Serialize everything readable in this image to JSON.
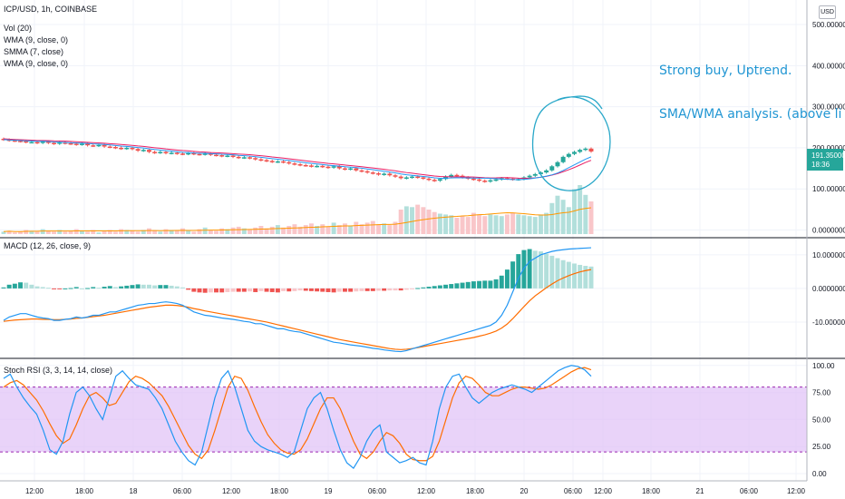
{
  "header": {
    "symbol": "ICP/USD, 1h, COINBASE",
    "indicators": [
      "Vol (20)",
      "WMA (9, close, 0)",
      "SMMA (7, close)",
      "WMA (9, close, 0)"
    ]
  },
  "currency_button": "USD",
  "annotations": {
    "line1": "Strong buy, Uptrend.",
    "line2": "SMA/WMA analysis. (above li"
  },
  "price_tag": {
    "value": "191.35000000",
    "countdown": "18:36"
  },
  "colors": {
    "up": "#26a69a",
    "down": "#ef5350",
    "up_light": "#b2dfdb",
    "down_light": "#f9c6c9",
    "wma_blue": "#2196f3",
    "smma_red": "#e91e63",
    "vol_ma": "#ff9800",
    "macd": "#2196f3",
    "signal": "#ff6d00",
    "rsi_k": "#2196f3",
    "rsi_d": "#ff6d00",
    "band_fill": "#e1c4f7",
    "annotation": "#2196d3",
    "price_tag": "#26a69a"
  },
  "panes": {
    "macd_label": "MACD (12, 26, close, 9)",
    "rsi_label": "Stoch RSI (3, 3, 14, 14, close)"
  },
  "chart_data": [
    {
      "type": "candlestick",
      "title": "ICP/USD, 1h, COINBASE",
      "y_ticks": [
        "500.00000000",
        "400.00000000",
        "300.00000000",
        "200.00000000",
        "100.00000000",
        "0.00000000"
      ],
      "ylim": [
        -10,
        520
      ],
      "x_ticks": [
        "12:00",
        "18:00",
        "18",
        "06:00",
        "12:00",
        "18:00",
        "19",
        "06:00",
        "12:00",
        "18:00",
        "20",
        "06:00",
        "12:00",
        "18:00",
        "21",
        "06:00",
        "12:00"
      ],
      "close": [
        220,
        218,
        217,
        216,
        214,
        214,
        212,
        215,
        212,
        210,
        213,
        211,
        210,
        208,
        210,
        206,
        205,
        207,
        203,
        202,
        200,
        198,
        200,
        197,
        193,
        195,
        190,
        188,
        190,
        187,
        188,
        186,
        185,
        187,
        185,
        184,
        186,
        183,
        182,
        180,
        181,
        178,
        176,
        177,
        175,
        172,
        170,
        168,
        166,
        167,
        165,
        162,
        160,
        158,
        157,
        155,
        156,
        154,
        152,
        155,
        150,
        148,
        150,
        145,
        143,
        140,
        138,
        135,
        137,
        133,
        130,
        126,
        128,
        130,
        128,
        125,
        122,
        120,
        124,
        130,
        134,
        132,
        128,
        125,
        123,
        120,
        118,
        121,
        123,
        126,
        125,
        123,
        124,
        128,
        132,
        136,
        140,
        145,
        155,
        165,
        178,
        185,
        190,
        195,
        198,
        191
      ],
      "volume": [
        3,
        4,
        2,
        3,
        5,
        4,
        3,
        6,
        4,
        3,
        5,
        3,
        4,
        6,
        4,
        3,
        5,
        2,
        4,
        5,
        3,
        6,
        5,
        4,
        3,
        5,
        7,
        4,
        3,
        6,
        5,
        4,
        7,
        5,
        3,
        6,
        8,
        5,
        4,
        7,
        6,
        8,
        9,
        7,
        6,
        8,
        10,
        7,
        9,
        11,
        8,
        10,
        12,
        9,
        11,
        13,
        10,
        12,
        9,
        14,
        11,
        13,
        10,
        15,
        12,
        14,
        16,
        12,
        13,
        11,
        15,
        30,
        34,
        33,
        36,
        33,
        30,
        27,
        25,
        24,
        23,
        20,
        22,
        21,
        26,
        24,
        22,
        24,
        23,
        22,
        24,
        26,
        24,
        23,
        22,
        21,
        24,
        26,
        38,
        47,
        42,
        33,
        55,
        60,
        48,
        40
      ]
    },
    {
      "type": "line",
      "title": "MACD (12, 26, close, 9)",
      "y_ticks": [
        "10.00000000",
        "0.00000000",
        "-10.00000000"
      ],
      "ylim": [
        -20,
        14
      ],
      "series": [
        {
          "name": "MACD",
          "values": [
            -9.5,
            -8.5,
            -8,
            -7.5,
            -7.5,
            -8,
            -8.5,
            -8.8,
            -9,
            -9.5,
            -9.5,
            -9.2,
            -9,
            -8.5,
            -8.8,
            -8.5,
            -8,
            -8,
            -7.5,
            -7,
            -7,
            -6.5,
            -6,
            -5.5,
            -5,
            -4.8,
            -4.5,
            -4.5,
            -4.2,
            -4,
            -4.2,
            -4.5,
            -5,
            -6,
            -7,
            -7.5,
            -8,
            -8.2,
            -8.5,
            -8.8,
            -9,
            -9.2,
            -9.5,
            -9.8,
            -10,
            -10.5,
            -10.5,
            -11,
            -11.5,
            -12,
            -12,
            -12.5,
            -12.8,
            -13,
            -13.5,
            -14,
            -14.5,
            -15,
            -15.5,
            -16,
            -16.2,
            -16.5,
            -16.8,
            -17,
            -17.2,
            -17.5,
            -17.8,
            -18,
            -18.3,
            -18.5,
            -18.7,
            -18.8,
            -18.5,
            -18,
            -17.5,
            -17,
            -16.5,
            -16,
            -15.5,
            -15,
            -14.5,
            -14,
            -13.5,
            -13,
            -12.5,
            -12,
            -11.5,
            -11,
            -10,
            -8,
            -5,
            -1,
            3,
            6,
            8,
            9,
            10,
            10.5,
            11,
            11.3,
            11.5,
            11.7,
            11.8,
            11.9,
            12,
            12.1
          ],
          "note_values_resampled": true
        },
        {
          "name": "Signal",
          "values": [
            -9.8,
            -9.6,
            -9.4,
            -9.3,
            -9.2,
            -9.1,
            -9.1,
            -9.2,
            -9.2,
            -9.3,
            -9.3,
            -9.2,
            -9.1,
            -8.9,
            -8.8,
            -8.6,
            -8.4,
            -8.2,
            -8,
            -7.7,
            -7.4,
            -7.1,
            -6.8,
            -6.5,
            -6.2,
            -5.9,
            -5.6,
            -5.4,
            -5.2,
            -5,
            -5,
            -5.1,
            -5.3,
            -5.6,
            -6,
            -6.3,
            -6.7,
            -7,
            -7.3,
            -7.6,
            -7.9,
            -8.2,
            -8.5,
            -8.8,
            -9.1,
            -9.4,
            -9.7,
            -10,
            -10.4,
            -10.8,
            -11.2,
            -11.6,
            -12,
            -12.4,
            -12.8,
            -13.2,
            -13.6,
            -14,
            -14.4,
            -14.8,
            -15.2,
            -15.5,
            -15.8,
            -16.1,
            -16.4,
            -16.7,
            -17,
            -17.3,
            -17.6,
            -17.9,
            -18.1,
            -18.2,
            -18.1,
            -17.9,
            -17.6,
            -17.3,
            -17,
            -16.7,
            -16.4,
            -16.1,
            -15.8,
            -15.5,
            -15.2,
            -14.9,
            -14.6,
            -14.2,
            -13.8,
            -13.3,
            -12.7,
            -11.8,
            -10.6,
            -9,
            -7.2,
            -5.4,
            -3.7,
            -2.2,
            -1,
            0.2,
            1.3,
            2.3,
            3.1,
            3.8,
            4.4,
            4.9,
            5.3,
            5.6
          ],
          "note_values_resampled": true
        }
      ]
    },
    {
      "type": "line",
      "title": "Stoch RSI (3, 3, 14, 14, close)",
      "y_ticks": [
        "100.00",
        "75.00",
        "50.00",
        "25.00",
        "0.00"
      ],
      "ylim": [
        -5,
        104
      ],
      "bands": [
        20,
        80
      ],
      "series": [
        {
          "name": "K",
          "values": [
            88,
            92,
            80,
            70,
            62,
            55,
            40,
            22,
            18,
            30,
            55,
            75,
            80,
            72,
            60,
            50,
            70,
            90,
            95,
            88,
            82,
            80,
            78,
            70,
            60,
            45,
            30,
            20,
            12,
            8,
            20,
            45,
            70,
            88,
            95,
            80,
            60,
            40,
            30,
            25,
            22,
            20,
            18,
            15,
            20,
            40,
            60,
            70,
            75,
            60,
            40,
            22,
            10,
            5,
            15,
            30,
            40,
            45,
            20,
            15,
            10,
            12,
            15,
            10,
            8,
            30,
            60,
            80,
            90,
            92,
            80,
            70,
            65,
            70,
            75,
            78,
            80,
            82,
            80,
            78,
            75,
            80,
            85,
            90,
            95,
            98,
            100,
            99,
            96,
            90
          ]
        },
        {
          "name": "D",
          "values": [
            80,
            84,
            86,
            82,
            75,
            68,
            58,
            46,
            35,
            28,
            32,
            45,
            60,
            72,
            75,
            70,
            63,
            65,
            75,
            85,
            90,
            88,
            84,
            78,
            72,
            62,
            50,
            38,
            26,
            18,
            14,
            22,
            40,
            60,
            80,
            90,
            88,
            77,
            62,
            48,
            36,
            28,
            22,
            19,
            18,
            22,
            32,
            46,
            60,
            70,
            70,
            60,
            45,
            30,
            18,
            14,
            20,
            30,
            38,
            35,
            28,
            18,
            13,
            12,
            12,
            16,
            30,
            50,
            70,
            84,
            90,
            88,
            82,
            75,
            72,
            72,
            75,
            78,
            80,
            80,
            79,
            78,
            79,
            82,
            86,
            90,
            94,
            97,
            98,
            96
          ]
        }
      ]
    }
  ]
}
